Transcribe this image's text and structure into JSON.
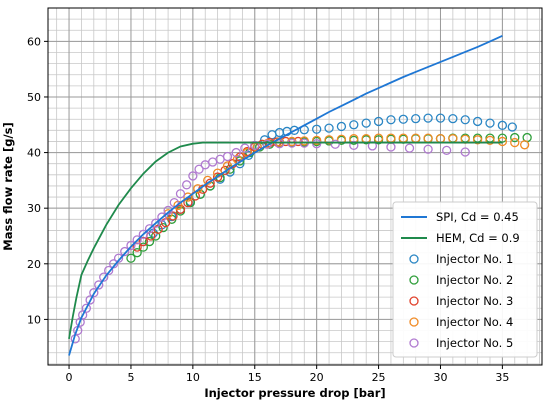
{
  "chart_data": {
    "type": "scatter",
    "xlabel": "Injector pressure drop [bar]",
    "ylabel": "Mass flow rate [g/s]",
    "xlim": [
      -1.7,
      38.2
    ],
    "ylim": [
      1.8,
      66
    ],
    "x_ticks": [
      0,
      5,
      10,
      15,
      20,
      25,
      30,
      35
    ],
    "y_ticks": [
      10,
      20,
      30,
      40,
      50,
      60
    ],
    "grid": true,
    "minor_grid": true,
    "legend_position": "bottom-right",
    "lines": [
      {
        "name": "SPI, Cd = 0.45",
        "color": "#1f77d4",
        "x": [
          0,
          0.5,
          1,
          2,
          3,
          4,
          5,
          6,
          7,
          8,
          9,
          10,
          11,
          12,
          13,
          14,
          15,
          16,
          17,
          18,
          19,
          20,
          21,
          22,
          23,
          24,
          25,
          26,
          27,
          28,
          29,
          30,
          31,
          32,
          33,
          34,
          35
        ],
        "y": [
          3.5,
          7.3,
          10.3,
          14.6,
          17.9,
          20.6,
          23.1,
          25.3,
          27.3,
          29.2,
          31.0,
          32.6,
          34.2,
          35.7,
          37.2,
          38.6,
          40.0,
          41.3,
          42.5,
          43.7,
          44.9,
          46.1,
          47.3,
          48.4,
          49.5,
          50.6,
          51.6,
          52.6,
          53.6,
          54.5,
          55.4,
          56.3,
          57.2,
          58.1,
          59.0,
          60.0,
          61.0
        ]
      },
      {
        "name": "HEM, Cd = 0.9",
        "color": "#1f8a4c",
        "x": [
          0,
          0.3,
          0.6,
          1,
          1.5,
          2,
          3,
          4,
          5,
          6,
          7,
          8,
          9,
          10,
          10.8,
          11.5,
          13,
          15,
          20,
          25,
          30,
          35
        ],
        "y": [
          6.5,
          10.5,
          14.0,
          18.0,
          20.5,
          22.8,
          27.0,
          30.6,
          33.6,
          36.2,
          38.4,
          40.0,
          41.1,
          41.6,
          41.8,
          41.8,
          41.8,
          41.8,
          41.8,
          41.8,
          41.8,
          41.8
        ]
      }
    ],
    "series": [
      {
        "name": "Injector No. 1",
        "color": "#2a86c4",
        "x": [
          6.0,
          6.8,
          7.5,
          8.3,
          9.0,
          9.8,
          10.6,
          11.4,
          12.2,
          13.0,
          13.8,
          14.5,
          15.2,
          15.8,
          16.4,
          17.0,
          17.6,
          18.2,
          19.0,
          20.0,
          21.0,
          22.0,
          23.0,
          24.0,
          25.0,
          26.0,
          27.0,
          28.0,
          29.0,
          30.0,
          31.0,
          32.0,
          33.0,
          34.0,
          35.0,
          35.8
        ],
        "y": [
          24.0,
          25.5,
          27.0,
          28.5,
          29.8,
          31.2,
          32.5,
          34.0,
          35.2,
          36.5,
          38.0,
          39.5,
          41.0,
          42.3,
          43.2,
          43.6,
          43.8,
          44.0,
          44.1,
          44.2,
          44.4,
          44.7,
          45.0,
          45.3,
          45.6,
          45.9,
          46.0,
          46.1,
          46.2,
          46.2,
          46.1,
          45.9,
          45.6,
          45.3,
          44.9,
          44.6
        ]
      },
      {
        "name": "Injector No. 2",
        "color": "#2e9e3a",
        "x": [
          5.0,
          5.5,
          6.0,
          6.5,
          7.0,
          7.6,
          8.3,
          9.0,
          9.8,
          10.6,
          11.4,
          12.2,
          13.0,
          13.8,
          14.6,
          15.4,
          16.2,
          17.0,
          18.0,
          19.0,
          20.0,
          21.0,
          22.0,
          23.0,
          24.0,
          25.0,
          26.0,
          27.0,
          28.0,
          29.0,
          30.0,
          31.0,
          32.0,
          33.0,
          34.0,
          35.0,
          36.0,
          37.0
        ],
        "y": [
          21.0,
          22.0,
          23.0,
          24.0,
          25.0,
          26.5,
          28.0,
          29.5,
          31.0,
          32.5,
          34.0,
          35.5,
          37.0,
          38.5,
          40.0,
          41.0,
          41.5,
          41.7,
          41.8,
          41.9,
          42.0,
          42.1,
          42.2,
          42.2,
          42.3,
          42.3,
          42.4,
          42.4,
          42.5,
          42.5,
          42.5,
          42.6,
          42.6,
          42.6,
          42.6,
          42.6,
          42.7,
          42.7
        ]
      },
      {
        "name": "Injector No. 3",
        "color": "#e0402a",
        "x": [
          5.5,
          6.0,
          6.6,
          7.2,
          7.8,
          8.4,
          9.0,
          9.6,
          10.2,
          10.8,
          11.4,
          12.0,
          12.6,
          13.2,
          13.8,
          14.4,
          15.0,
          15.6,
          16.2,
          16.8,
          17.5,
          18.5
        ],
        "y": [
          23.0,
          24.0,
          25.0,
          26.2,
          27.4,
          28.6,
          29.8,
          31.0,
          32.2,
          33.4,
          34.5,
          35.6,
          36.8,
          38.0,
          39.2,
          40.2,
          41.0,
          41.5,
          41.8,
          41.9,
          42.0,
          42.0
        ]
      },
      {
        "name": "Injector No. 4",
        "color": "#f08a24",
        "x": [
          8.0,
          8.8,
          9.6,
          10.4,
          11.2,
          12.0,
          12.8,
          13.6,
          14.4,
          15.2,
          16.0,
          17.0,
          18.0,
          19.0,
          20.0,
          21.0,
          22.0,
          23.0,
          24.0,
          25.0,
          26.0,
          27.0,
          28.0,
          29.0,
          30.0,
          31.0,
          32.0,
          33.0,
          34.0,
          35.0,
          36.0,
          36.8
        ],
        "y": [
          29.0,
          30.5,
          32.0,
          33.5,
          35.0,
          36.3,
          37.6,
          38.8,
          40.0,
          41.0,
          41.6,
          41.9,
          42.0,
          42.1,
          42.2,
          42.3,
          42.4,
          42.5,
          42.5,
          42.6,
          42.6,
          42.6,
          42.6,
          42.6,
          42.5,
          42.5,
          42.4,
          42.3,
          42.2,
          42.0,
          41.8,
          41.4
        ]
      },
      {
        "name": "Injector No. 5",
        "color": "#b07ad0",
        "x": [
          0.5,
          0.7,
          0.9,
          1.1,
          1.4,
          1.7,
          2.0,
          2.4,
          2.8,
          3.2,
          3.6,
          4.0,
          4.5,
          5.0,
          5.5,
          6.0,
          6.5,
          7.0,
          7.5,
          8.0,
          8.5,
          9.0,
          9.5,
          10.0,
          10.5,
          11.0,
          11.6,
          12.2,
          12.8,
          13.5,
          14.2,
          15.0,
          16.0,
          17.0,
          18.0,
          19.0,
          20.0,
          21.5,
          23.0,
          24.5,
          26.0,
          27.5,
          29.0,
          30.5,
          32.0
        ],
        "y": [
          6.5,
          8.0,
          9.5,
          10.8,
          12.0,
          13.5,
          14.8,
          16.2,
          17.6,
          18.8,
          20.0,
          21.0,
          22.2,
          23.3,
          24.3,
          25.3,
          26.3,
          27.3,
          28.4,
          29.6,
          31.0,
          32.6,
          34.2,
          35.8,
          37.0,
          37.8,
          38.3,
          38.8,
          39.3,
          40.0,
          40.8,
          41.3,
          41.5,
          41.6,
          41.7,
          41.7,
          41.6,
          41.5,
          41.3,
          41.2,
          41.0,
          40.8,
          40.6,
          40.4,
          40.1
        ]
      }
    ]
  }
}
